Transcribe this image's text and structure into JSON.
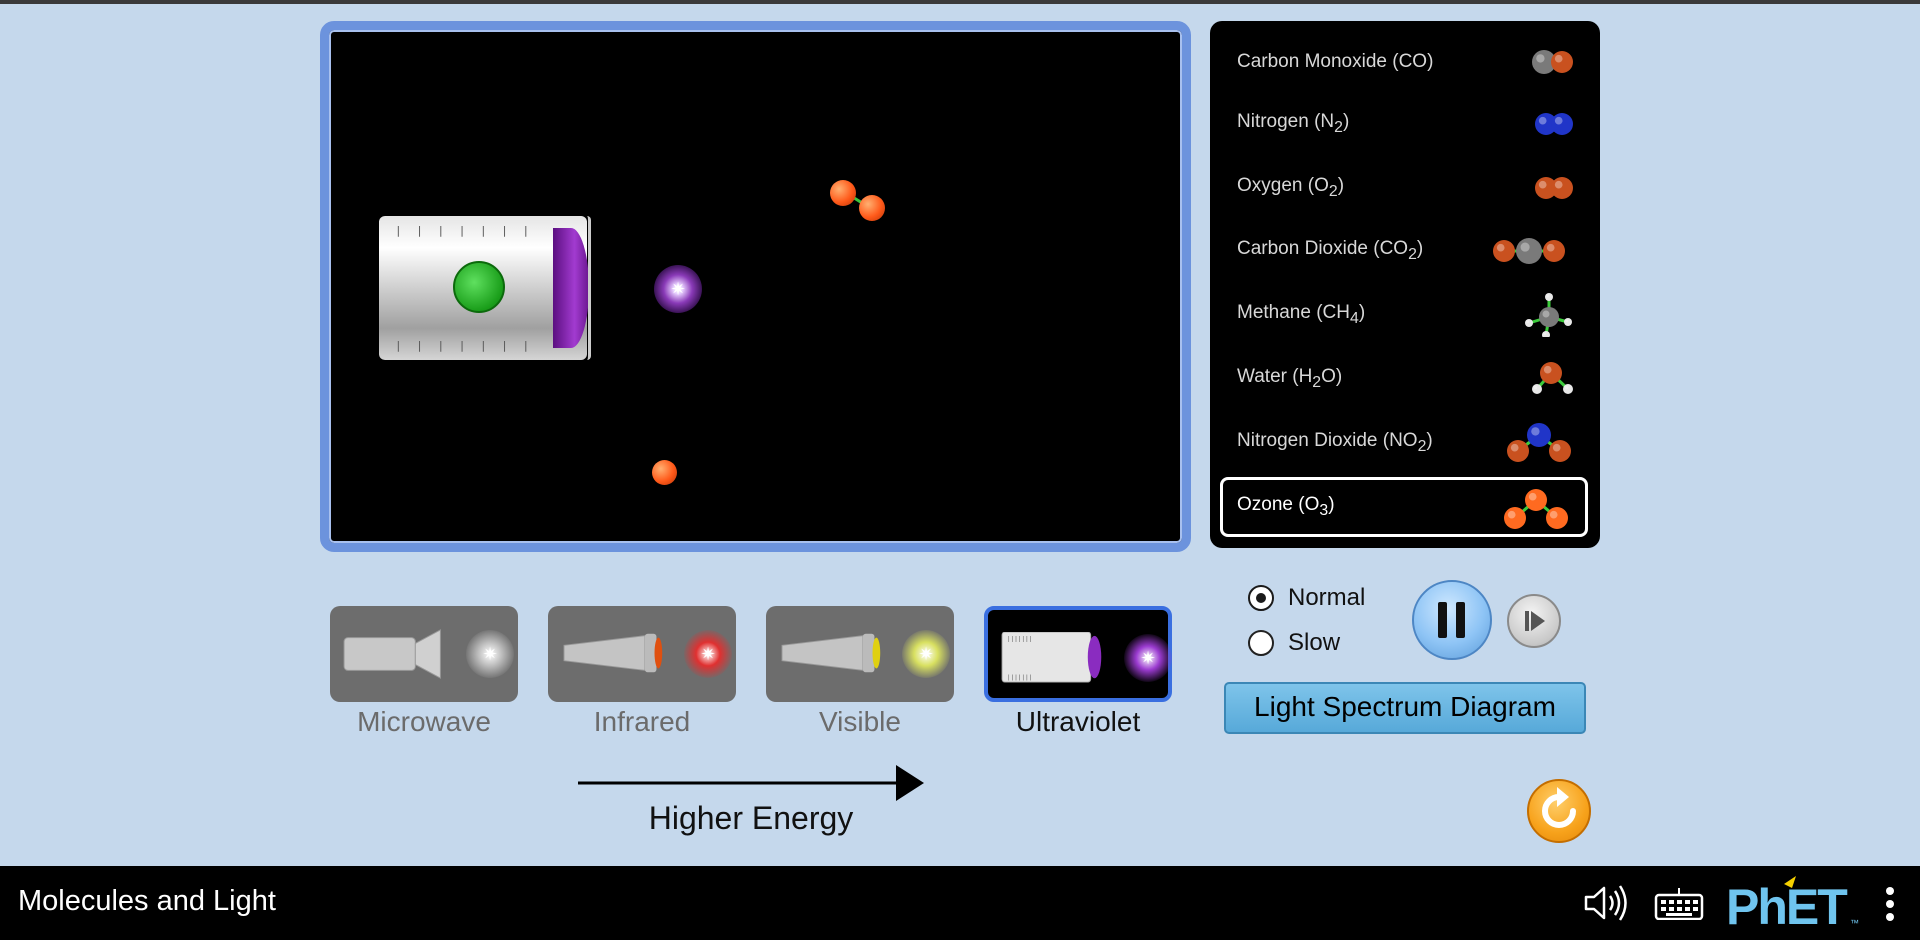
{
  "app": {
    "title": "Molecules and Light"
  },
  "play_area": {
    "emitter": "ultraviolet-lamp",
    "photon_glyph": "✷"
  },
  "molecules": [
    {
      "label": "Carbon Monoxide (CO)",
      "icon": "co-molecule-icon",
      "selected": false
    },
    {
      "label_html": "Nitrogen (N<sub>2</sub>)",
      "icon": "n2-molecule-icon",
      "selected": false
    },
    {
      "label_html": "Oxygen (O<sub>2</sub>)",
      "icon": "o2-molecule-icon",
      "selected": false
    },
    {
      "label_html": "Carbon Dioxide (CO<sub>2</sub>)",
      "icon": "co2-molecule-icon",
      "selected": false
    },
    {
      "label_html": "Methane (CH<sub>4</sub>)",
      "icon": "ch4-molecule-icon",
      "selected": false
    },
    {
      "label_html": "Water (H<sub>2</sub>O)",
      "icon": "h2o-molecule-icon",
      "selected": false
    },
    {
      "label_html": "Nitrogen Dioxide (NO<sub>2</sub>)",
      "icon": "no2-molecule-icon",
      "selected": false
    },
    {
      "label_html": "Ozone (O<sub>3</sub>)",
      "icon": "o3-molecule-icon",
      "selected": true
    }
  ],
  "light_sources": [
    {
      "label": "Microwave",
      "selected": false,
      "photon_color": "#bdbdbd"
    },
    {
      "label": "Infrared",
      "selected": false,
      "photon_color": "#e03030"
    },
    {
      "label": "Visible",
      "selected": false,
      "photon_color": "#d8e060"
    },
    {
      "label": "Ultraviolet",
      "selected": true,
      "photon_color": "#9b3bd0"
    }
  ],
  "energy": {
    "label": "Higher Energy"
  },
  "speed": {
    "options": [
      "Normal",
      "Slow"
    ],
    "selected": "Normal"
  },
  "controls": {
    "spectrum_button": "Light Spectrum Diagram",
    "play_state": "playing"
  },
  "colors": {
    "background": "#c5d8ec",
    "play_area_border": "#6c93dd",
    "selected_source_border": "#3a6fe0",
    "spectrum_button": "#57a9d9",
    "reset_button": "#f7a21b",
    "phet_blue": "#6fc4ee",
    "phet_yellow": "#f5d000"
  },
  "navbar": {
    "title": "Molecules and Light",
    "icons": [
      "sound-icon",
      "keyboard-icon",
      "phet-logo",
      "menu-icon"
    ]
  }
}
